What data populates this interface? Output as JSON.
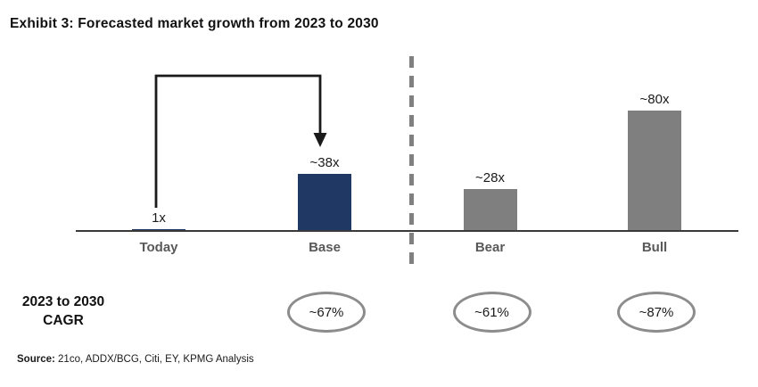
{
  "title": "Exhibit 3: Forecasted market growth from 2023 to 2030",
  "chart_data": {
    "type": "bar",
    "title": "Exhibit 3: Forecasted market growth from 2023 to 2030",
    "categories": [
      "Today",
      "Base",
      "Bear",
      "Bull"
    ],
    "values": [
      1,
      38,
      28,
      80
    ],
    "ylim": [
      0,
      85
    ],
    "grid": false,
    "legend": false,
    "annotations": {
      "arrow": "bracket arrow from Today bar up and over, pointing down at top of Base bar",
      "divider": "vertical dashed line separating Base scenario from Bear/Bull scenarios"
    },
    "bars": [
      {
        "label": "Today",
        "value": 1,
        "value_label": "1x",
        "color": "#1f3864",
        "cagr": null
      },
      {
        "label": "Base",
        "value": 38,
        "value_label": "~38x",
        "color": "#1f3864",
        "cagr": "~67%"
      },
      {
        "label": "Bear",
        "value": 28,
        "value_label": "~28x",
        "color": "#7f7f7f",
        "cagr": "~61%"
      },
      {
        "label": "Bull",
        "value": 80,
        "value_label": "~80x",
        "color": "#7f7f7f",
        "cagr": "~87%"
      }
    ]
  },
  "cagr_row": {
    "label_line1": "2023 to 2030",
    "label_line2": "CAGR"
  },
  "source": {
    "prefix": "Source:",
    "text": " 21co, ADDX/BCG, Citi, EY, KPMG Analysis"
  },
  "colors": {
    "navy": "#1f3864",
    "bar_gray": "#7f7f7f",
    "label_gray": "#595959",
    "axis": "#3a3a3a",
    "divider": "#808080",
    "oval_border": "#8c8c8c",
    "arrow": "#1a1a1a"
  }
}
